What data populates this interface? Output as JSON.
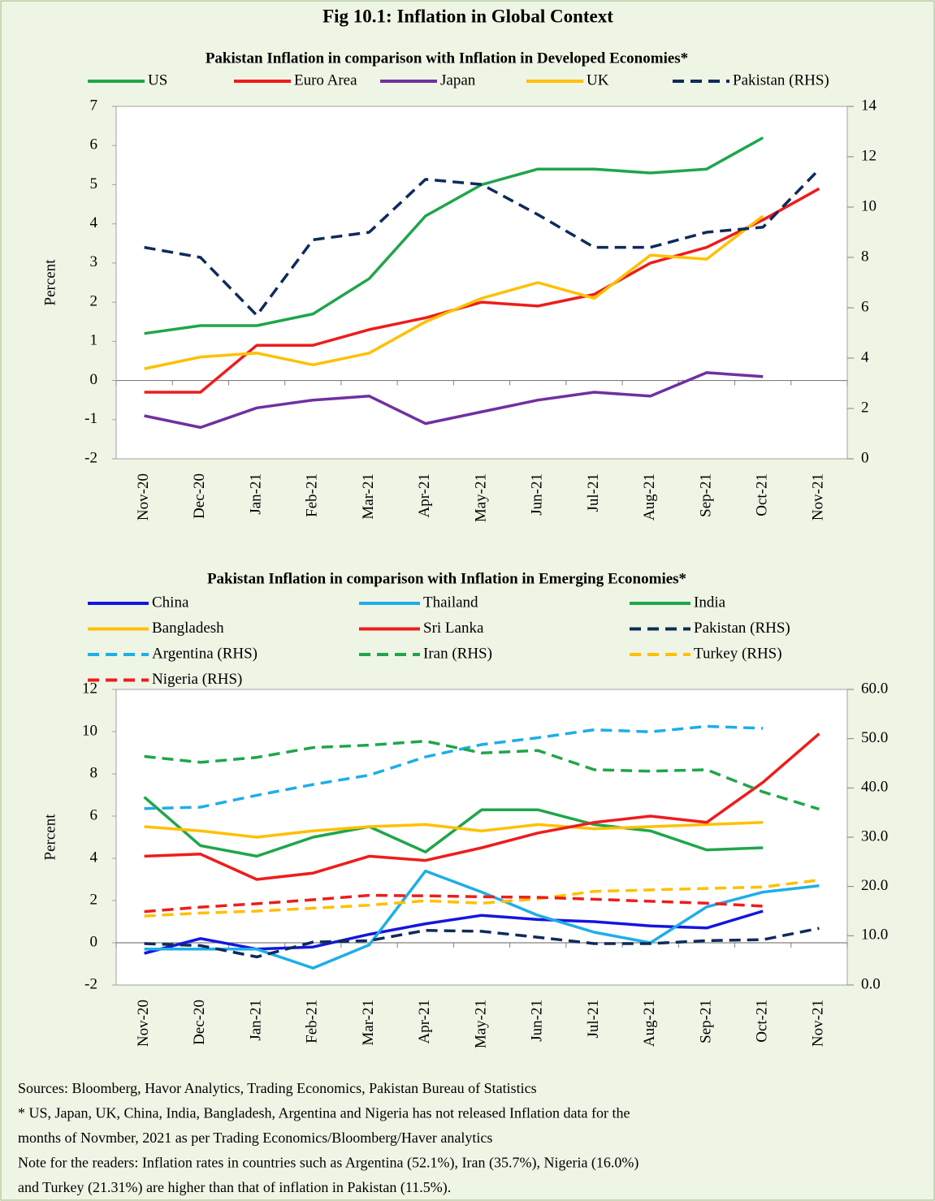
{
  "figure_title": "Fig 10.1: Inflation in Global Context",
  "notes": [
    "Sources: Bloomberg, Havor Analytics, Trading Economics, Pakistan Bureau of Statistics",
    "* US, Japan, UK, China, India, Bangladesh, Argentina and Nigeria has not released  Inflation data for the",
    "months of Novmber, 2021 as per Trading Economics/Bloomberg/Haver analytics",
    "Note for the readers:  Inflation rates in countries such as Argentina (52.1%), Iran (35.7%), Nigeria (16.0%)",
    "and Turkey (21.31%) are higher than that of inflation in Pakistan (11.5%)."
  ],
  "chart_data": [
    {
      "type": "line",
      "title": "Pakistan Inflation in comparison with Inflation in Developed Economies*",
      "y_label": "Percent",
      "categories": [
        "Nov-20",
        "Dec-20",
        "Jan-21",
        "Feb-21",
        "Mar-21",
        "Apr-21",
        "May-21",
        "Jun-21",
        "Jul-21",
        "Aug-21",
        "Sep-21",
        "Oct-21",
        "Nov-21"
      ],
      "ylim": [
        -2,
        7
      ],
      "yticks": [
        -2,
        -1,
        0,
        1,
        2,
        3,
        4,
        5,
        6,
        7
      ],
      "y2lim": [
        0,
        14
      ],
      "y2ticks": [
        0,
        2,
        4,
        6,
        8,
        10,
        12,
        14
      ],
      "series": [
        {
          "name": "US",
          "color": "#1fa64a",
          "values": [
            1.2,
            1.4,
            1.4,
            1.7,
            2.6,
            4.2,
            5.0,
            5.4,
            5.4,
            5.3,
            5.4,
            6.2,
            null
          ]
        },
        {
          "name": "Euro Area",
          "color": "#ee1c1c",
          "values": [
            -0.3,
            -0.3,
            0.9,
            0.9,
            1.3,
            1.6,
            2.0,
            1.9,
            2.2,
            3.0,
            3.4,
            4.1,
            4.9
          ]
        },
        {
          "name": "Japan",
          "color": "#7030a0",
          "values": [
            -0.9,
            -1.2,
            -0.7,
            -0.5,
            -0.4,
            -1.1,
            -0.8,
            -0.5,
            -0.3,
            -0.4,
            0.2,
            0.1,
            null
          ]
        },
        {
          "name": "UK",
          "color": "#ffc000",
          "values": [
            0.3,
            0.6,
            0.7,
            0.4,
            0.7,
            1.5,
            2.1,
            2.5,
            2.1,
            3.2,
            3.1,
            4.2,
            null
          ]
        },
        {
          "name": "Pakistan (RHS)",
          "color": "#0f2a5c",
          "linestyle": "dashed",
          "axis": "y2",
          "values": [
            8.4,
            8.0,
            5.7,
            8.7,
            9.0,
            11.1,
            10.9,
            9.7,
            8.4,
            8.4,
            9.0,
            9.2,
            11.5
          ]
        }
      ]
    },
    {
      "type": "line",
      "title": "Pakistan Inflation in comparison with Inflation in Emerging Economies*",
      "y_label": "Percent",
      "categories": [
        "Nov-20",
        "Dec-20",
        "Jan-21",
        "Feb-21",
        "Mar-21",
        "Apr-21",
        "May-21",
        "Jun-21",
        "Jul-21",
        "Aug-21",
        "Sep-21",
        "Oct-21",
        "Nov-21"
      ],
      "ylim": [
        -2,
        12
      ],
      "yticks": [
        -2,
        0,
        2,
        4,
        6,
        8,
        10,
        12
      ],
      "y2lim": [
        0,
        60
      ],
      "y2ticks": [
        {
          "value": 0,
          "label": "0.0"
        },
        {
          "value": 10,
          "label": "10.0"
        },
        {
          "value": 20,
          "label": "20.0"
        },
        {
          "value": 30,
          "label": "30.0"
        },
        {
          "value": 40,
          "label": "40.0"
        },
        {
          "value": 50,
          "label": "50.0"
        },
        {
          "value": 60,
          "label": "60.0"
        }
      ],
      "series": [
        {
          "name": "China",
          "color": "#1515e0",
          "values": [
            -0.5,
            0.2,
            -0.3,
            -0.2,
            0.4,
            0.9,
            1.3,
            1.1,
            1.0,
            0.8,
            0.7,
            1.5,
            null
          ]
        },
        {
          "name": "Thailand",
          "color": "#1eaee8",
          "values": [
            -0.3,
            -0.3,
            -0.3,
            -1.2,
            -0.1,
            3.4,
            2.4,
            1.3,
            0.5,
            0.0,
            1.7,
            2.4,
            2.7
          ]
        },
        {
          "name": "India",
          "color": "#1fa64a",
          "values": [
            6.9,
            4.6,
            4.1,
            5.0,
            5.5,
            4.3,
            6.3,
            6.3,
            5.6,
            5.3,
            4.4,
            4.5,
            null
          ]
        },
        {
          "name": "Bangladesh",
          "color": "#ffc000",
          "values": [
            5.5,
            5.3,
            5.0,
            5.3,
            5.5,
            5.6,
            5.3,
            5.6,
            5.4,
            5.5,
            5.6,
            5.7,
            null
          ]
        },
        {
          "name": "Sri Lanka",
          "color": "#ee1c1c",
          "values": [
            4.1,
            4.2,
            3.0,
            3.3,
            4.1,
            3.9,
            4.5,
            5.2,
            5.7,
            6.0,
            5.7,
            7.6,
            9.9
          ]
        },
        {
          "name": "Pakistan (RHS)",
          "color": "#0f2a5c",
          "linestyle": "dashed",
          "axis": "y2",
          "values": [
            8.4,
            8.0,
            5.7,
            8.7,
            9.0,
            11.1,
            10.9,
            9.7,
            8.4,
            8.4,
            9.0,
            9.2,
            11.5
          ]
        },
        {
          "name": "Argentina (RHS)",
          "color": "#1eaee8",
          "linestyle": "dashed",
          "axis": "y2",
          "values": [
            35.8,
            36.1,
            38.5,
            40.7,
            42.6,
            46.3,
            48.8,
            50.2,
            51.8,
            51.4,
            52.5,
            52.1,
            null
          ]
        },
        {
          "name": "Iran (RHS)",
          "color": "#1fa64a",
          "linestyle": "dashed",
          "axis": "y2",
          "values": [
            46.4,
            45.2,
            46.2,
            48.2,
            48.7,
            49.5,
            47.1,
            47.6,
            43.7,
            43.4,
            43.7,
            39.2,
            35.7
          ]
        },
        {
          "name": "Turkey (RHS)",
          "color": "#ffc000",
          "linestyle": "dashed",
          "axis": "y2",
          "values": [
            14.0,
            14.6,
            15.0,
            15.6,
            16.2,
            17.1,
            16.6,
            17.5,
            19.0,
            19.3,
            19.6,
            19.9,
            21.3
          ]
        },
        {
          "name": "Nigeria (RHS)",
          "color": "#ee1c1c",
          "linestyle": "dashed",
          "axis": "y2",
          "values": [
            14.9,
            15.8,
            16.5,
            17.3,
            18.2,
            18.1,
            17.9,
            17.8,
            17.4,
            17.0,
            16.6,
            16.0,
            null
          ]
        }
      ]
    }
  ]
}
